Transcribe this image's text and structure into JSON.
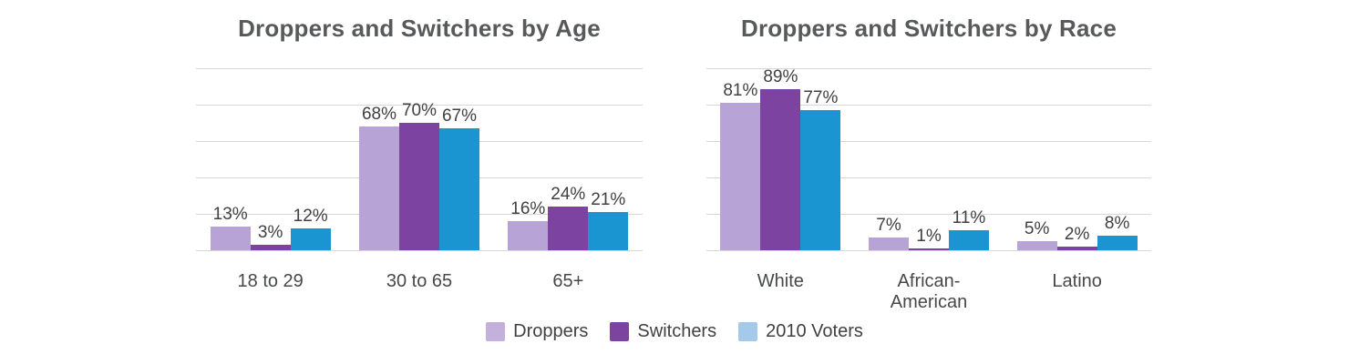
{
  "chart_data": [
    {
      "type": "bar",
      "title": "Droppers and Switchers by Age",
      "categories": [
        "18 to 29",
        "30 to 65",
        "65+"
      ],
      "series": [
        {
          "name": "Droppers",
          "values": [
            13,
            68,
            16
          ]
        },
        {
          "name": "Switchers",
          "values": [
            3,
            70,
            24
          ]
        },
        {
          "name": "2010 Voters",
          "values": [
            12,
            67,
            21
          ]
        }
      ],
      "value_suffix": "%",
      "ylim": [
        0,
        100
      ],
      "gridline_step": 20,
      "grid": true,
      "xlabel": "",
      "ylabel": ""
    },
    {
      "type": "bar",
      "title": "Droppers and Switchers by Race",
      "categories": [
        "White",
        "African-\nAmerican",
        "Latino"
      ],
      "series": [
        {
          "name": "Droppers",
          "values": [
            81,
            7,
            5
          ]
        },
        {
          "name": "Switchers",
          "values": [
            89,
            1,
            2
          ]
        },
        {
          "name": "2010 Voters",
          "values": [
            77,
            11,
            8
          ]
        }
      ],
      "value_suffix": "%",
      "ylim": [
        0,
        100
      ],
      "gridline_step": 20,
      "grid": true,
      "xlabel": "",
      "ylabel": ""
    }
  ],
  "legend": {
    "position": "bottom-center",
    "items": [
      {
        "label": "Droppers",
        "swatch_color": "#c3b1dc"
      },
      {
        "label": "Switchers",
        "swatch_color": "#7c44a0"
      },
      {
        "label": "2010 Voters",
        "swatch_color": "#a5c9e9"
      }
    ]
  },
  "colors": {
    "series": {
      "Droppers": "#b7a3d6",
      "Switchers": "#7c44a0",
      "2010 Voters": "#1b94d2"
    },
    "gridline": "#d8d8da",
    "title_text": "#58595b",
    "value_label_text": "#404042",
    "category_label_text": "#47484a",
    "background": "#ffffff"
  }
}
